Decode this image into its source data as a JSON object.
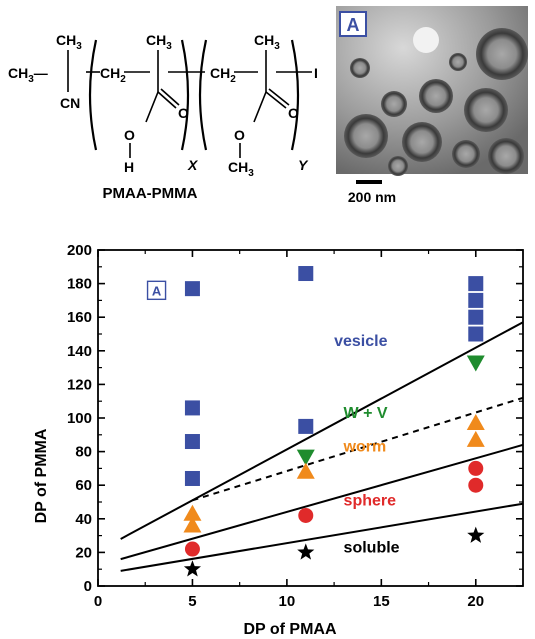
{
  "scheme": {
    "name": "PMAA-PMMA",
    "atoms": {
      "ch3": "CH",
      "sub3": "3",
      "cn": "CN",
      "ch2": "CH",
      "sub2": "2",
      "o": "O",
      "h": "H",
      "iodine": "I"
    },
    "subscript_x": "X",
    "subscript_y": "Y"
  },
  "micrograph": {
    "panel_label": "A",
    "scale_bar_label": "200 nm"
  },
  "chart_data": {
    "type": "scatter",
    "xlabel": "DP of PMAA",
    "ylabel": "DP of PMMA",
    "xlim": [
      0,
      22.5
    ],
    "ylim": [
      0,
      200
    ],
    "xticks": [
      0,
      5,
      10,
      15,
      20
    ],
    "yticks": [
      0,
      20,
      40,
      60,
      80,
      100,
      120,
      140,
      160,
      180,
      200
    ],
    "grid": false,
    "series": [
      {
        "name": "vesicle",
        "marker": "square",
        "color": "#3b4fa3",
        "points": [
          [
            5,
            177
          ],
          [
            5,
            106
          ],
          [
            5,
            86
          ],
          [
            5,
            64
          ],
          [
            11,
            186
          ],
          [
            11,
            95
          ],
          [
            20,
            180
          ],
          [
            20,
            170
          ],
          [
            20,
            160
          ],
          [
            20,
            150
          ]
        ]
      },
      {
        "name": "W + V",
        "marker": "triangle-down",
        "color": "#1f8c2e",
        "points": [
          [
            11,
            77
          ],
          [
            20,
            133
          ]
        ]
      },
      {
        "name": "worm",
        "marker": "triangle-up",
        "color": "#f08a1c",
        "points": [
          [
            5,
            43
          ],
          [
            5,
            36
          ],
          [
            11,
            68
          ],
          [
            20,
            97
          ],
          [
            20,
            87
          ]
        ]
      },
      {
        "name": "sphere",
        "marker": "circle",
        "color": "#e02a2a",
        "points": [
          [
            5,
            22
          ],
          [
            11,
            42
          ],
          [
            20,
            70
          ],
          [
            20,
            60
          ]
        ]
      },
      {
        "name": "soluble",
        "marker": "star",
        "color": "#000000",
        "points": [
          [
            5,
            10
          ],
          [
            11,
            20
          ],
          [
            20,
            30
          ]
        ]
      }
    ],
    "boundaries": [
      {
        "style": "solid",
        "points": [
          [
            1.2,
            28
          ],
          [
            22.5,
            157
          ]
        ]
      },
      {
        "style": "dashed",
        "points": [
          [
            5,
            51
          ],
          [
            22.5,
            112
          ]
        ]
      },
      {
        "style": "solid",
        "points": [
          [
            1.2,
            16
          ],
          [
            22.5,
            84
          ]
        ]
      },
      {
        "style": "solid",
        "points": [
          [
            1.2,
            9
          ],
          [
            22.5,
            49
          ]
        ]
      }
    ],
    "region_labels": [
      {
        "text": "vesicle",
        "x": 12.5,
        "y": 143,
        "color": "#3b4fa3"
      },
      {
        "text": "W + V",
        "x": 13,
        "y": 100,
        "color": "#1f8c2e"
      },
      {
        "text": "worm",
        "x": 13,
        "y": 80,
        "color": "#f08a1c"
      },
      {
        "text": "sphere",
        "x": 13,
        "y": 48,
        "color": "#e02a2a"
      },
      {
        "text": "soluble",
        "x": 13,
        "y": 20,
        "color": "#000000"
      }
    ],
    "inset_label": {
      "text": "A",
      "x": 3.1,
      "y": 176,
      "color": "#3b4fa3"
    }
  }
}
